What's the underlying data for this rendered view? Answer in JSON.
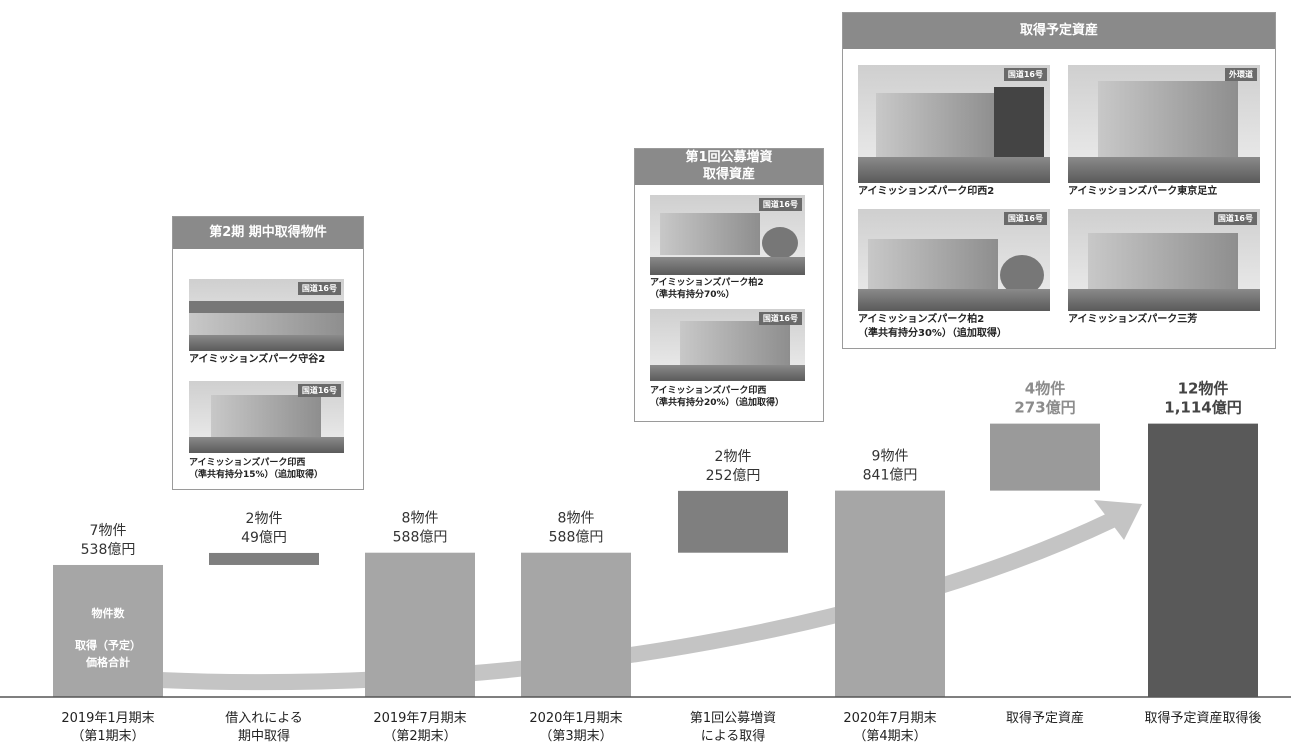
{
  "chart_data": {
    "type": "bar",
    "categories": [
      "2019年1月期末\n（第1期末）",
      "借入れによる\n期中取得",
      "2019年7月期末\n（第2期末）",
      "2020年1月期末\n（第3期末）",
      "第1回公募増資\nによる取得",
      "2020年7月期末\n（第4期末）",
      "取得予定資産",
      "取得予定資産取得後"
    ],
    "values": [
      538,
      49,
      588,
      588,
      252,
      841,
      273,
      1114
    ],
    "label_count": [
      "7物件",
      "2物件",
      "8物件",
      "8物件",
      "2物件",
      "9物件",
      "4物件",
      "12物件"
    ],
    "label_value": [
      "538億円",
      "49億円",
      "588億円",
      "588億円",
      "252億円",
      "841億円",
      "273億円",
      "1,114億円"
    ],
    "bar_kind": [
      "total",
      "increment",
      "total",
      "total",
      "increment",
      "total",
      "planned",
      "final"
    ],
    "legend_in_bar": [
      "物件数",
      "取得（予定）",
      "価格合計"
    ],
    "title": "",
    "xlabel": "",
    "ylabel": ""
  },
  "colors": {
    "total": "#a6a6a6",
    "increment": "#7f7f7f",
    "planned": "#9a9a9a",
    "final": "#595959",
    "arrow": "#c4c4c4",
    "label_planned": "#8c8c8c",
    "label_final": "#444444"
  },
  "box1": {
    "title": "第2期 期中取得物件",
    "items": [
      {
        "badge": "国道16号",
        "caption": [
          "アイミッションズパーク守谷2"
        ]
      },
      {
        "badge": "国道16号",
        "caption": [
          "アイミッションズパーク印西",
          "（準共有持分15%）（追加取得）"
        ]
      }
    ]
  },
  "box2": {
    "title": [
      "第1回公募増資",
      "取得資産"
    ],
    "items": [
      {
        "badge": "国道16号",
        "caption": [
          "アイミッションズパーク柏2",
          "（準共有持分70%）"
        ]
      },
      {
        "badge": "国道16号",
        "caption": [
          "アイミッションズパーク印西",
          "（準共有持分20%）（追加取得）"
        ]
      }
    ]
  },
  "box3": {
    "title": "取得予定資産",
    "items": [
      {
        "badge": "国道16号",
        "caption": [
          "アイミッションズパーク印西2"
        ]
      },
      {
        "badge": "外環道",
        "caption": [
          "アイミッションズパーク東京足立"
        ]
      },
      {
        "badge": "国道16号",
        "caption": [
          "アイミッションズパーク柏2",
          "（準共有持分30%）（追加取得）"
        ]
      },
      {
        "badge": "国道16号",
        "caption": [
          "アイミッションズパーク三芳"
        ]
      }
    ]
  }
}
